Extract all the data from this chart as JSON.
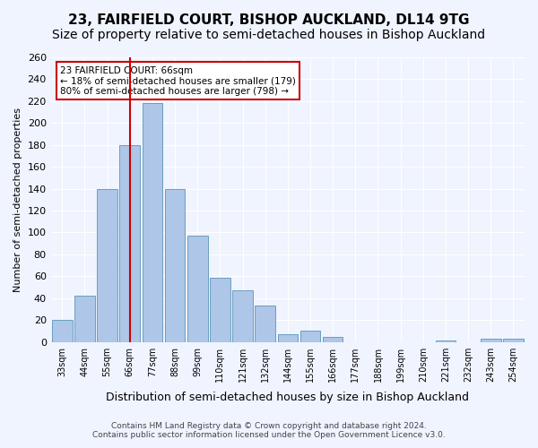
{
  "title": "23, FAIRFIELD COURT, BISHOP AUCKLAND, DL14 9TG",
  "subtitle": "Size of property relative to semi-detached houses in Bishop Auckland",
  "xlabel": "Distribution of semi-detached houses by size in Bishop Auckland",
  "ylabel": "Number of semi-detached properties",
  "footer1": "Contains HM Land Registry data © Crown copyright and database right 2024.",
  "footer2": "Contains public sector information licensed under the Open Government Licence v3.0.",
  "annotation_title": "23 FAIRFIELD COURT: 66sqm",
  "annotation_line1": "← 18% of semi-detached houses are smaller (179)",
  "annotation_line2": "80% of semi-detached houses are larger (798) →",
  "bar_labels": [
    "33sqm",
    "44sqm",
    "55sqm",
    "66sqm",
    "77sqm",
    "88sqm",
    "99sqm",
    "110sqm",
    "121sqm",
    "132sqm",
    "144sqm",
    "155sqm",
    "166sqm",
    "177sqm",
    "188sqm",
    "199sqm",
    "210sqm",
    "221sqm",
    "232sqm",
    "243sqm",
    "254sqm"
  ],
  "bar_values": [
    20,
    42,
    140,
    180,
    218,
    140,
    97,
    59,
    47,
    33,
    7,
    10,
    5,
    0,
    0,
    0,
    0,
    1,
    0,
    3,
    3
  ],
  "bar_color": "#aec6e8",
  "bar_edge_color": "#6a9fc0",
  "marker_index": 3,
  "marker_color": "#cc0000",
  "ylim": [
    0,
    260
  ],
  "yticks": [
    0,
    20,
    40,
    60,
    80,
    100,
    120,
    140,
    160,
    180,
    200,
    220,
    240,
    260
  ],
  "background_color": "#f0f4ff",
  "plot_background": "#f0f4ff",
  "title_fontsize": 11,
  "subtitle_fontsize": 10
}
